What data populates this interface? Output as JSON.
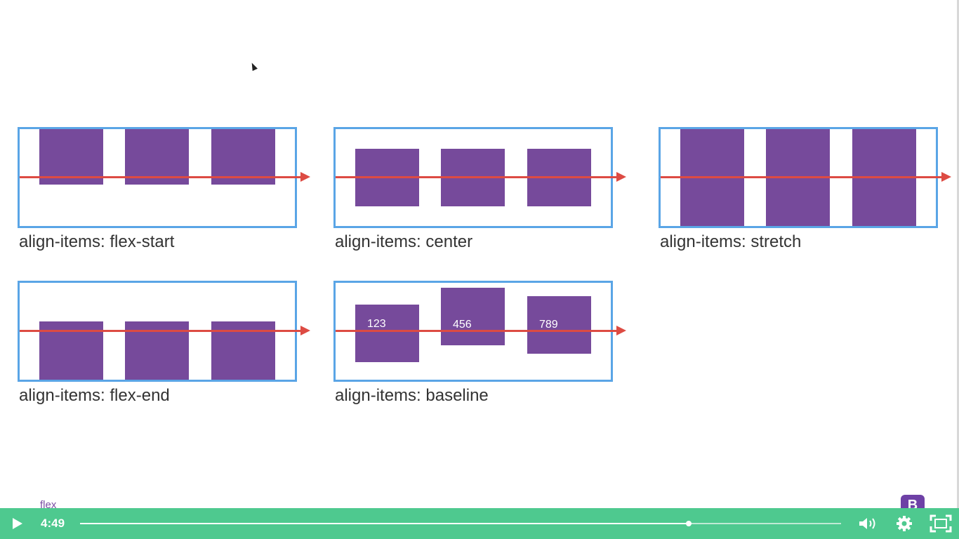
{
  "diagrams": [
    {
      "caption": "align-items: flex-start"
    },
    {
      "caption": "align-items: center"
    },
    {
      "caption": "align-items: stretch"
    },
    {
      "caption": "align-items: flex-end"
    },
    {
      "caption": "align-items: baseline",
      "box_labels": [
        "123",
        "456",
        "789"
      ]
    }
  ],
  "footer": {
    "topic_label": "flex",
    "badge_letter": "B"
  },
  "player": {
    "current_time": "4:49",
    "progress": 0.8,
    "icons": {
      "play": "play-icon",
      "volume": "volume-icon",
      "settings": "gear-icon",
      "fullscreen": "fullscreen-icon"
    },
    "colors": {
      "bar": "#4ec98f",
      "box": "#764a9b",
      "frame": "#5aa5e6",
      "axis": "#dd4b43"
    }
  }
}
